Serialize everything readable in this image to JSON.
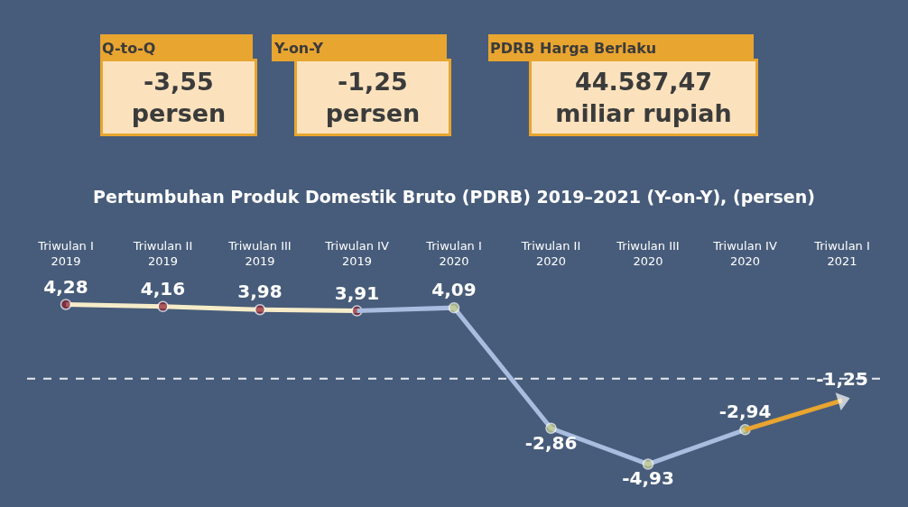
{
  "chart_data": {
    "type": "line",
    "title": "Pertumbuhan Produk Domestik Bruto (PDRB) 2019–2021 (Y-on-Y), (persen)",
    "categories": [
      "Triwulan I\n2019",
      "Triwulan II\n2019",
      "Triwulan III\n2019",
      "Triwulan IV\n2019",
      "Triwulan I\n2020",
      "Triwulan II\n2020",
      "Triwulan III\n2020",
      "Triwulan IV\n2020",
      "Triwulan I\n2021"
    ],
    "series": [
      {
        "color": "#f6ecc9",
        "colors": [
          "#8c1c2c",
          "#8c1c2c",
          "#8c1c2c",
          "#8c1c2c",
          null,
          null,
          null,
          null,
          null
        ],
        "values": [
          4.28,
          4.16,
          3.98,
          3.91,
          null,
          null,
          null,
          null,
          null
        ],
        "value_labels": [
          "4,28",
          "4,16",
          "3,98",
          "3,91",
          null,
          null,
          null,
          null,
          null
        ]
      },
      {
        "color": "#a9bde0",
        "colors": [
          null,
          null,
          null,
          "#8c1c2c",
          "#c9d38a",
          "#c9d38a",
          "#c9d38a",
          "#c9d38a",
          null
        ],
        "values": [
          null,
          null,
          null,
          3.91,
          4.09,
          -2.86,
          -4.93,
          -2.94,
          null
        ],
        "value_labels": [
          null,
          null,
          null,
          null,
          "4,09",
          "-2,86",
          "-4,93",
          "-2,94",
          null
        ]
      },
      {
        "color": "#e8a530",
        "marker": "triangle",
        "colors": [
          null,
          null,
          null,
          null,
          null,
          null,
          null,
          "#c9d38a",
          "#ffffff"
        ],
        "values": [
          null,
          null,
          null,
          null,
          null,
          null,
          null,
          -2.94,
          -1.25
        ],
        "value_labels": [
          null,
          null,
          null,
          null,
          null,
          null,
          null,
          null,
          "-1,25"
        ]
      }
    ],
    "marker": "circle",
    "grid": false,
    "tick_labels": "x",
    "ref_lines": [
      {
        "axis": "y",
        "value": 0,
        "color": "#e6e9ef",
        "line_style": "dashed"
      }
    ],
    "annotations": [
      "Q-to-Q",
      "-3,55\npersen",
      "Y-on-Y",
      "-1,25\npersen",
      "PDRB Harga Berlaku",
      "44.587,47\nmiliar rupiah"
    ]
  }
}
